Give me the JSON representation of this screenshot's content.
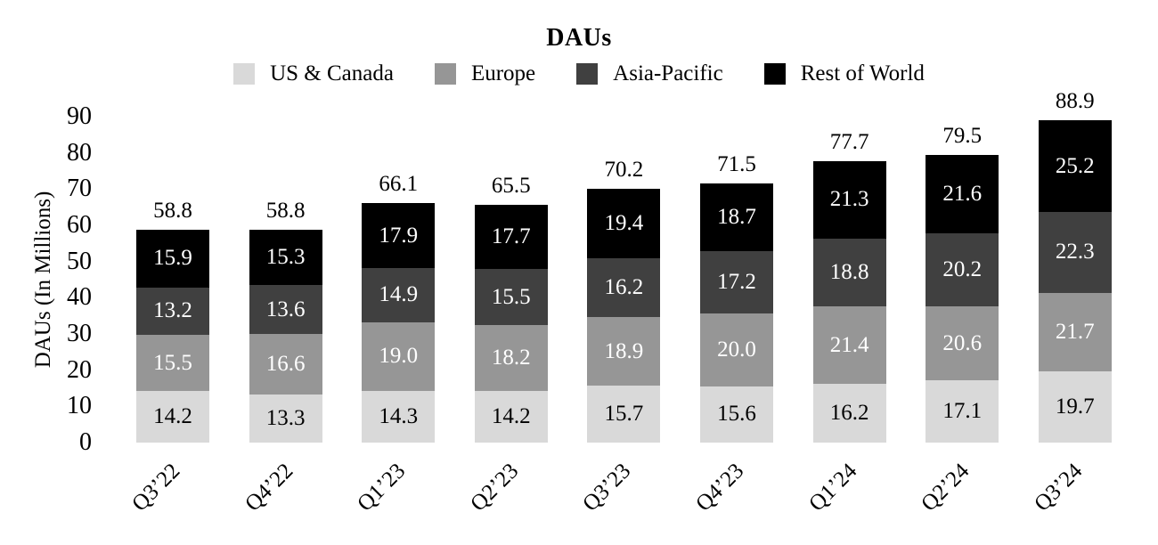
{
  "chart_data": {
    "type": "bar",
    "stacked": true,
    "title": "DAUs",
    "ylabel": "DAUs (In Millions)",
    "ylim": [
      0,
      90
    ],
    "yticks": [
      0,
      10,
      20,
      30,
      40,
      50,
      60,
      70,
      80,
      90
    ],
    "grid": false,
    "axis_lines": false,
    "legend_position": "top",
    "categories": [
      "Q3’22",
      "Q4’22",
      "Q1’23",
      "Q2’23",
      "Q3’23",
      "Q4’23",
      "Q1’24",
      "Q2’24",
      "Q3’24"
    ],
    "series": [
      {
        "name": "US & Canada",
        "color": "#d9d9d9",
        "label_color": "#000000",
        "values": [
          14.2,
          13.3,
          14.3,
          14.2,
          15.7,
          15.6,
          16.2,
          17.1,
          19.7
        ]
      },
      {
        "name": "Europe",
        "color": "#969696",
        "label_color": "#ffffff",
        "values": [
          15.5,
          16.6,
          19.0,
          18.2,
          18.9,
          20.0,
          21.4,
          20.6,
          21.7
        ]
      },
      {
        "name": "Asia-Pacific",
        "color": "#404040",
        "label_color": "#ffffff",
        "values": [
          13.2,
          13.6,
          14.9,
          15.5,
          16.2,
          17.2,
          18.8,
          20.2,
          22.3
        ]
      },
      {
        "name": "Rest of World",
        "color": "#000000",
        "label_color": "#ffffff",
        "values": [
          15.9,
          15.3,
          17.9,
          17.7,
          19.4,
          18.7,
          21.3,
          21.6,
          25.2
        ]
      }
    ],
    "totals": [
      "58.8",
      "58.8",
      "66.1",
      "65.5",
      "70.2",
      "71.5",
      "77.7",
      "79.5",
      "88.9"
    ]
  }
}
